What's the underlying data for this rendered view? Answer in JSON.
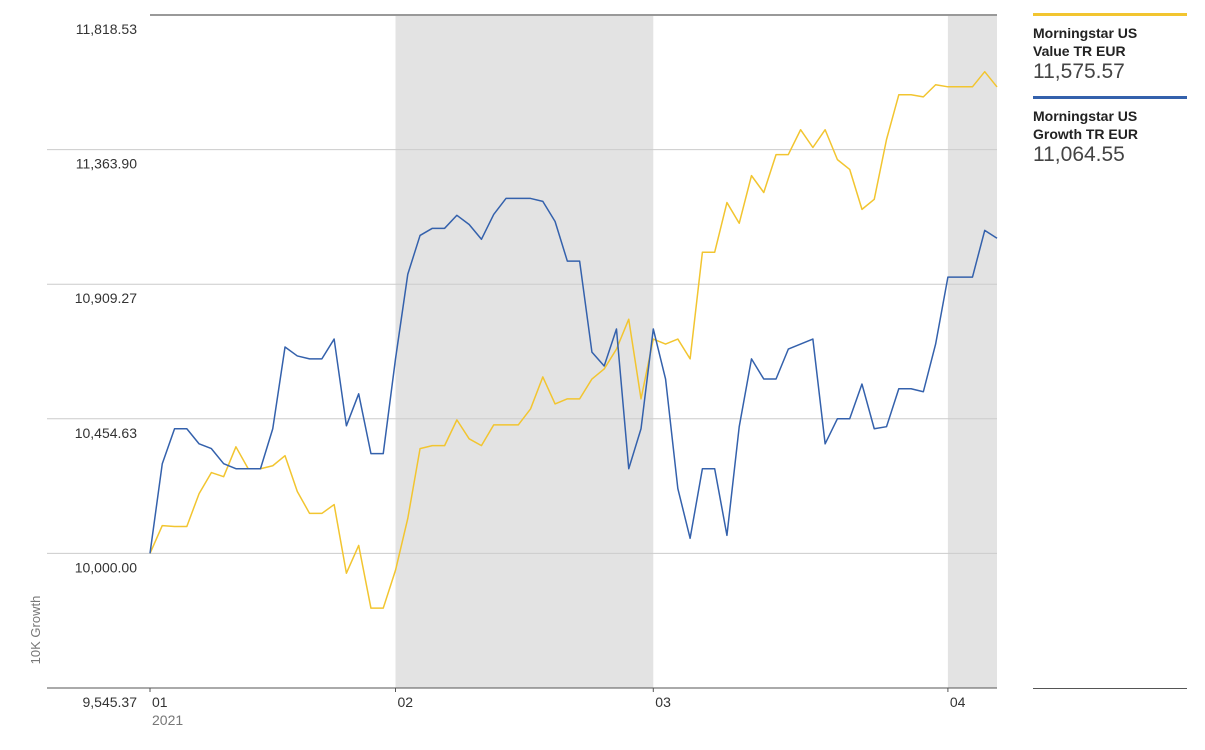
{
  "chart_data": {
    "type": "line",
    "ylabel": "10K Growth",
    "year": "2021",
    "x": [
      0,
      1,
      2,
      3,
      4,
      5,
      6,
      7,
      8,
      9,
      10,
      11,
      12,
      13,
      14,
      15,
      16,
      17,
      18,
      19,
      20,
      21,
      22,
      23,
      24,
      25,
      26,
      27,
      28,
      29,
      30,
      31,
      32,
      33,
      34,
      35,
      36,
      37,
      38,
      39,
      40,
      41,
      42,
      43,
      44,
      45,
      46,
      47,
      48,
      49,
      50,
      51,
      52,
      53,
      54,
      55,
      56,
      57,
      58,
      59,
      60,
      61,
      62,
      63,
      64,
      65,
      66,
      67,
      68,
      69
    ],
    "xlim": [
      0,
      69
    ],
    "xticks": [
      {
        "value": 0,
        "label": "01"
      },
      {
        "value": 20,
        "label": "02"
      },
      {
        "value": 41,
        "label": "03"
      },
      {
        "value": 65,
        "label": "04"
      }
    ],
    "ylim": [
      9545.37,
      11818.53
    ],
    "yticks": [
      {
        "value": 9545.37,
        "label": "9,545.37"
      },
      {
        "value": 10000,
        "label": "10,000.00"
      },
      {
        "value": 10454.63,
        "label": "10,454.63"
      },
      {
        "value": 10909.27,
        "label": "10,909.27"
      },
      {
        "value": 11363.9,
        "label": "11,363.90"
      },
      {
        "value": 11818.53,
        "label": "11,818.53"
      }
    ],
    "grid": true,
    "series": [
      {
        "name": "Morningstar US Value TR EUR",
        "color": "#f2c530",
        "legend_value": "11,575.57",
        "values": [
          10000,
          10094,
          10091,
          10091,
          10202,
          10273,
          10259,
          10360,
          10286,
          10286,
          10296,
          10330,
          10209,
          10135,
          10135,
          10165,
          9933,
          10027,
          9815,
          9815,
          9943,
          10118,
          10354,
          10364,
          10364,
          10451,
          10387,
          10364,
          10434,
          10434,
          10434,
          10488,
          10596,
          10505,
          10522,
          10522,
          10589,
          10623,
          10690,
          10791,
          10522,
          10724,
          10707,
          10724,
          10657,
          11017,
          11017,
          11185,
          11115,
          11276,
          11219,
          11347,
          11347,
          11431,
          11371,
          11431,
          11330,
          11297,
          11162,
          11196,
          11398,
          11549,
          11549,
          11542,
          11583,
          11576,
          11576,
          11576,
          11627,
          11575.57
        ]
      },
      {
        "name": "Morningstar US Growth TR EUR",
        "color": "#3461ac",
        "legend_value": "11,064.55",
        "values": [
          10000,
          10303,
          10421,
          10421,
          10370,
          10354,
          10303,
          10286,
          10286,
          10286,
          10421,
          10697,
          10667,
          10657,
          10657,
          10724,
          10431,
          10539,
          10337,
          10337,
          10657,
          10943,
          11074,
          11098,
          11098,
          11142,
          11111,
          11061,
          11145,
          11199,
          11199,
          11199,
          11189,
          11121,
          10987,
          10987,
          10680,
          10633,
          10758,
          10286,
          10421,
          10758,
          10589,
          10219,
          10051,
          10286,
          10286,
          10061,
          10428,
          10657,
          10589,
          10589,
          10690,
          10707,
          10724,
          10370,
          10455,
          10455,
          10572,
          10421,
          10428,
          10556,
          10556,
          10546,
          10707,
          10933,
          10933,
          10933,
          11091,
          11064.55
        ]
      }
    ]
  }
}
